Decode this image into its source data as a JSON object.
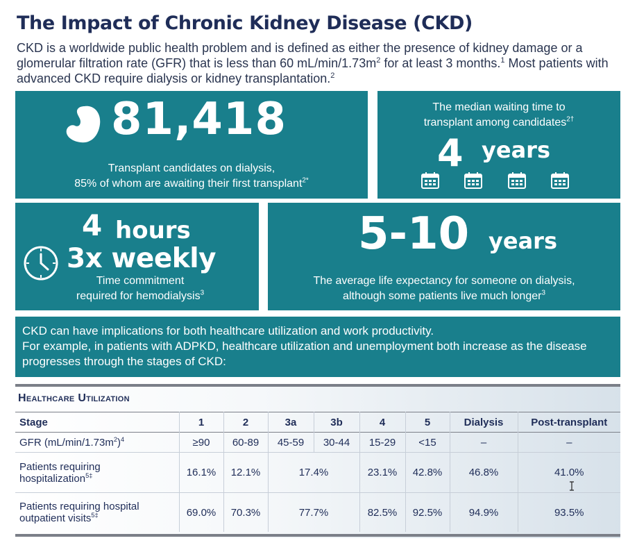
{
  "title": "The Impact of Chronic Kidney Disease (CKD)",
  "intro": {
    "part1": "CKD is a worldwide public health problem and is defined as either the presence of kidney damage or a glomerular filtration rate (GFR) that is less than 60 mL/min/1.73m",
    "sup1": "2",
    "part2": " for at least 3 months.",
    "sup2": "1",
    "part3": " Most patients with advanced CKD require dialysis or kidney transplantation.",
    "sup3": "2"
  },
  "stats": {
    "candidates": {
      "value": "81,418",
      "caption_line1": "Transplant candidates on dialysis,",
      "caption_line2": "85% of whom are awaiting their first transplant",
      "caption_sup": "2*"
    },
    "waiting": {
      "caption_line1": "The median waiting time to",
      "caption_line2": "transplant among candidates",
      "caption_sup": "2†",
      "value_number": "4",
      "value_unit": "years"
    },
    "hemodialysis": {
      "value_line1_number": "4",
      "value_line1_unit": "hours",
      "value_line2": "3x weekly",
      "caption_line1": "Time commitment",
      "caption_line2": "required for hemodialysis",
      "caption_sup": "3"
    },
    "life": {
      "value_range": "5-10",
      "value_unit": "years",
      "caption_line1": "The average life expectancy for someone on dialysis,",
      "caption_line2": "although some patients live much longer",
      "caption_sup": "3"
    }
  },
  "implications": {
    "line1": "CKD can have implications for both healthcare utilization and work productivity.",
    "line2": "For example, in patients with ADPKD, healthcare utilization and unemployment both increase as the disease progresses through the stages of CKD:"
  },
  "table": {
    "title": "Healthcare Utilization",
    "headers": [
      "Stage",
      "1",
      "2",
      "3a",
      "3b",
      "4",
      "5",
      "Dialysis",
      "Post-transplant"
    ],
    "gfr": {
      "label": "GFR (mL/min/1.73m",
      "label_sup": "2",
      "label_tail": ")",
      "label_sup2": "4",
      "values": [
        "≥90",
        "60-89",
        "45-59",
        "30-44",
        "15-29",
        "<15",
        "–",
        "–"
      ]
    },
    "hospitalization": {
      "label_line1": "Patients requiring",
      "label_line2": "hospitalization",
      "label_sup": "5‡",
      "values": [
        "16.1%",
        "12.1%",
        "17.4%",
        "23.1%",
        "42.8%",
        "46.8%",
        "41.0%"
      ]
    },
    "outpatient": {
      "label_line1": "Patients requiring hospital",
      "label_line2": "outpatient visits",
      "label_sup": "5‡",
      "values": [
        "69.0%",
        "70.3%",
        "77.7%",
        "82.5%",
        "92.5%",
        "94.9%",
        "93.5%"
      ]
    }
  },
  "colors": {
    "teal": "#197f8c",
    "navy": "#1f2d58"
  },
  "icons": [
    "kidney-icon",
    "calendar-icon",
    "clock-icon",
    "text-cursor-icon"
  ]
}
